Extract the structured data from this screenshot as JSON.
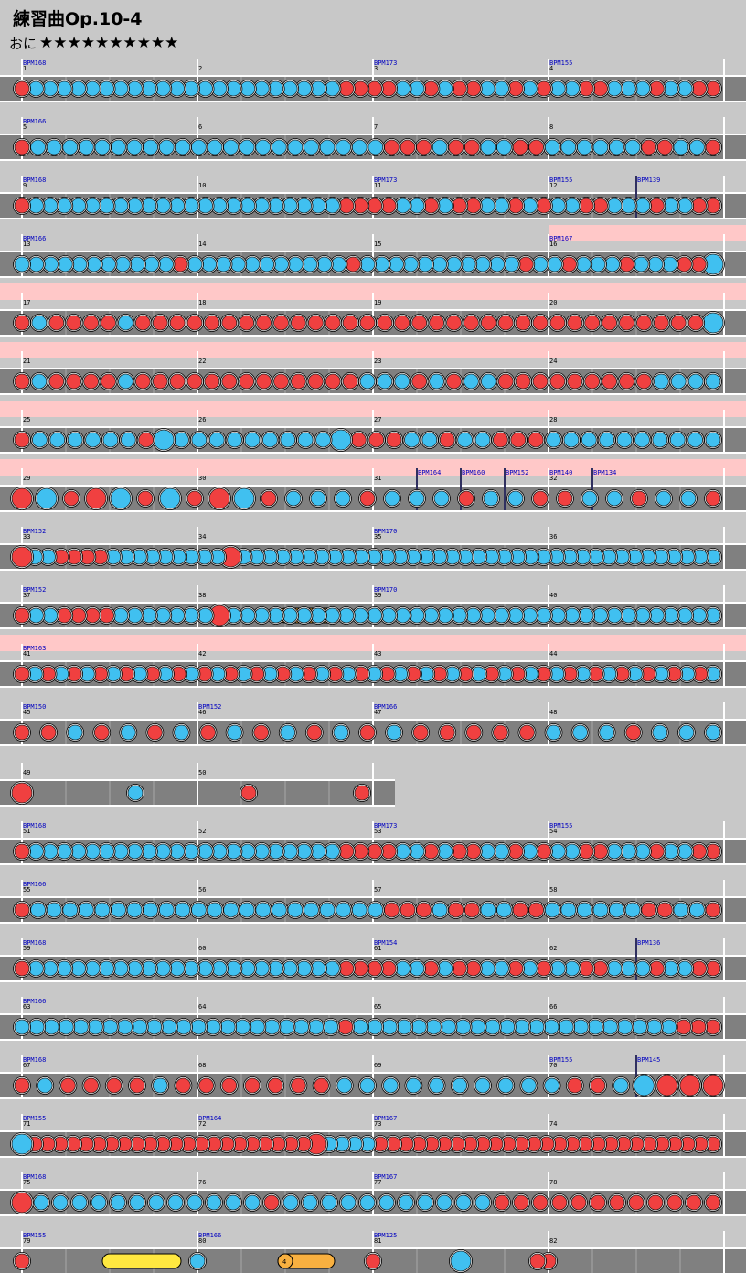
{
  "title": "練習曲Op.10-4",
  "difficulty": {
    "label": "おに",
    "stars_text": "★★★★★★★★★★",
    "level": 10
  },
  "colors": {
    "don": "#f04040",
    "ka": "#40c0f0",
    "roll": "#f8b040",
    "balloon": "#ffe840",
    "gogo": "#ffc8c8",
    "lane": "#808080",
    "bpm": "#0000c0"
  },
  "rows": [
    {
      "bars": [
        "1",
        "2",
        "3",
        "4"
      ],
      "bpm": [
        [
          "0",
          "BPM168"
        ],
        [
          "2",
          "BPM173"
        ],
        [
          "3",
          "BPM155"
        ]
      ],
      "notes": "dkkkkkkkkkkkkkkkkkkkkkkddddkkdkddkkdkdkkddkkkdkkdd"
    },
    {
      "bars": [
        "5",
        "6",
        "7",
        "8"
      ],
      "bpm": [
        [
          "0",
          "BPM166"
        ]
      ],
      "notes": "dkkkkkkkkkkkkkkkkkkkkkkdddkddkkddkkkkkkddkkd"
    },
    {
      "bars": [
        "9",
        "10",
        "11",
        "12"
      ],
      "bpm": [
        [
          "0",
          "BPM168"
        ],
        [
          "2",
          "BPM173"
        ],
        [
          "3",
          "BPM155"
        ],
        [
          "3.5",
          "BPM139"
        ]
      ],
      "notes": "dkkkkkkkkkkkkkkkkkkkkkkddddkkdkddkkdkdkkddkkkdkkdd"
    },
    {
      "bars": [
        "13",
        "14",
        "15",
        "16"
      ],
      "bpm": [
        [
          "0",
          "BPM166"
        ],
        [
          "3",
          "BPM167"
        ]
      ],
      "notes": "kkkkkkkkkkkdkkkkkkkkkkkdkkkkkkkkkkkdkkdkkkdkkkddK"
    },
    {
      "bars": [
        "17",
        "18",
        "19",
        "20"
      ],
      "bpm": [],
      "notes": "dkddddkdddddddddddddddddddddddddddddddddK"
    },
    {
      "bars": [
        "21",
        "22",
        "23",
        "24"
      ],
      "bpm": [],
      "notes": "dkddddkdddddddddddddkkkdkdkkdddddddddkkkk"
    },
    {
      "bars": [
        "25",
        "26",
        "27",
        "28"
      ],
      "bpm": [],
      "notes": "dkkkkkkdKkkkkkkkkkKdddkkdkkdddkkkkkkkkkk"
    },
    {
      "bars": [
        "29",
        "30",
        "31",
        "32"
      ],
      "bpm": [
        [
          "2.25",
          "BPM164"
        ],
        [
          "2.5",
          "BPM160"
        ],
        [
          "2.75",
          "BPM152"
        ],
        [
          "3",
          "BPM140"
        ],
        [
          "3.25",
          "BPM134"
        ]
      ],
      "notes": "DKdDKdKdDKdkkkdkkkdkkddkkdkkd"
    },
    {
      "bars": [
        "33",
        "34",
        "35",
        "36"
      ],
      "bpm": [
        [
          "0",
          "BPM152"
        ],
        [
          "2",
          "BPM170"
        ]
      ],
      "notes": "DkkddddkkkkkkkkkDkkkkkkkkkkkkkkkkkkkkkkkkkkkkkkkkkkkkk"
    },
    {
      "bars": [
        "37",
        "38",
        "39",
        "40"
      ],
      "bpm": [
        [
          "0",
          "BPM152"
        ],
        [
          "2",
          "BPM170"
        ]
      ],
      "notes": "dkkddddkkkkkkkDkkkkkkkkkkkkkkkkkkkkkkkkkkkkkkkkkkk"
    },
    {
      "bars": [
        "41",
        "42",
        "43",
        "44"
      ],
      "bpm": [
        [
          "0",
          "BPM163"
        ]
      ],
      "notes": "dkdkdkdkdkdkdkdkdkdkdkdkdkdkdkdkdkdkdkdkdkdkdkdkdkdkdk"
    },
    {
      "bars": [
        "45",
        "46",
        "47",
        "48"
      ],
      "bpm": [
        [
          "0",
          "BPM150"
        ],
        [
          "1",
          "BPM152"
        ],
        [
          "2",
          "BPM166"
        ]
      ],
      "notes": "ddkdkdkdkdkdkdkdddddkkkdkkk"
    },
    {
      "bars": [
        "49",
        "50"
      ],
      "bpm": [],
      "notes": "Dkdd"
    },
    {
      "bars": [
        "51",
        "52",
        "53",
        "54"
      ],
      "bpm": [
        [
          "0",
          "BPM168"
        ],
        [
          "2",
          "BPM173"
        ],
        [
          "3",
          "BPM155"
        ]
      ],
      "notes": "dkkkkkkkkkkkkkkkkkkkkkkddddkkdkddkkdkdkkddkkkdkkdd"
    },
    {
      "bars": [
        "55",
        "56",
        "57",
        "58"
      ],
      "bpm": [
        [
          "0",
          "BPM166"
        ]
      ],
      "notes": "dkkkkkkkkkkkkkkkkkkkkkkdddkddkkddkkkkkkddkkd"
    },
    {
      "bars": [
        "59",
        "60",
        "61",
        "62"
      ],
      "bpm": [
        [
          "0",
          "BPM168"
        ],
        [
          "2",
          "BPM154"
        ],
        [
          "3.5",
          "BPM136"
        ]
      ],
      "notes": "dkkkkkkkkkkkkkkkkkkkkkkddddkkdkddkkdkdkkddkkkdkkdd"
    },
    {
      "bars": [
        "63",
        "64",
        "65",
        "66"
      ],
      "bpm": [
        [
          "0",
          "BPM166"
        ]
      ],
      "notes": "kkkkkkkkkkkkkkkkkkkkkkdkkkkkkkkkkkkkkkkkkkkkkddd"
    },
    {
      "bars": [
        "67",
        "68",
        "69",
        "70"
      ],
      "bpm": [
        [
          "0",
          "BPM168"
        ],
        [
          "3",
          "BPM155"
        ],
        [
          "3.5",
          "BPM145"
        ]
      ],
      "notes": "dkddddkdddddddkkkkkkkkkkddkKDDD"
    },
    {
      "bars": [
        "71",
        "72",
        "73",
        "74"
      ],
      "bpm": [
        [
          "0",
          "BPM155"
        ],
        [
          "1",
          "BPM164"
        ],
        [
          "2",
          "BPM167"
        ]
      ],
      "notes": "KddddddddddddddddddddddDkkkkddddddddddddddddddddddddddd"
    },
    {
      "bars": [
        "75",
        "76",
        "77",
        "78"
      ],
      "bpm": [
        [
          "0",
          "BPM168"
        ],
        [
          "2",
          "BPM167"
        ]
      ],
      "notes": "Dkkkkkkkkkkkkdkkkkkkkkkkkdddddddddddd"
    },
    {
      "bars": [
        "79",
        "80",
        "81",
        "82"
      ],
      "bpm": [
        [
          "0",
          "BPM155"
        ],
        [
          "1",
          "BPM166"
        ],
        [
          "2",
          "BPM125"
        ]
      ],
      "notes": "dkdKdd",
      "balloon_count": "4"
    }
  ],
  "roll_labels": [
    "4"
  ]
}
